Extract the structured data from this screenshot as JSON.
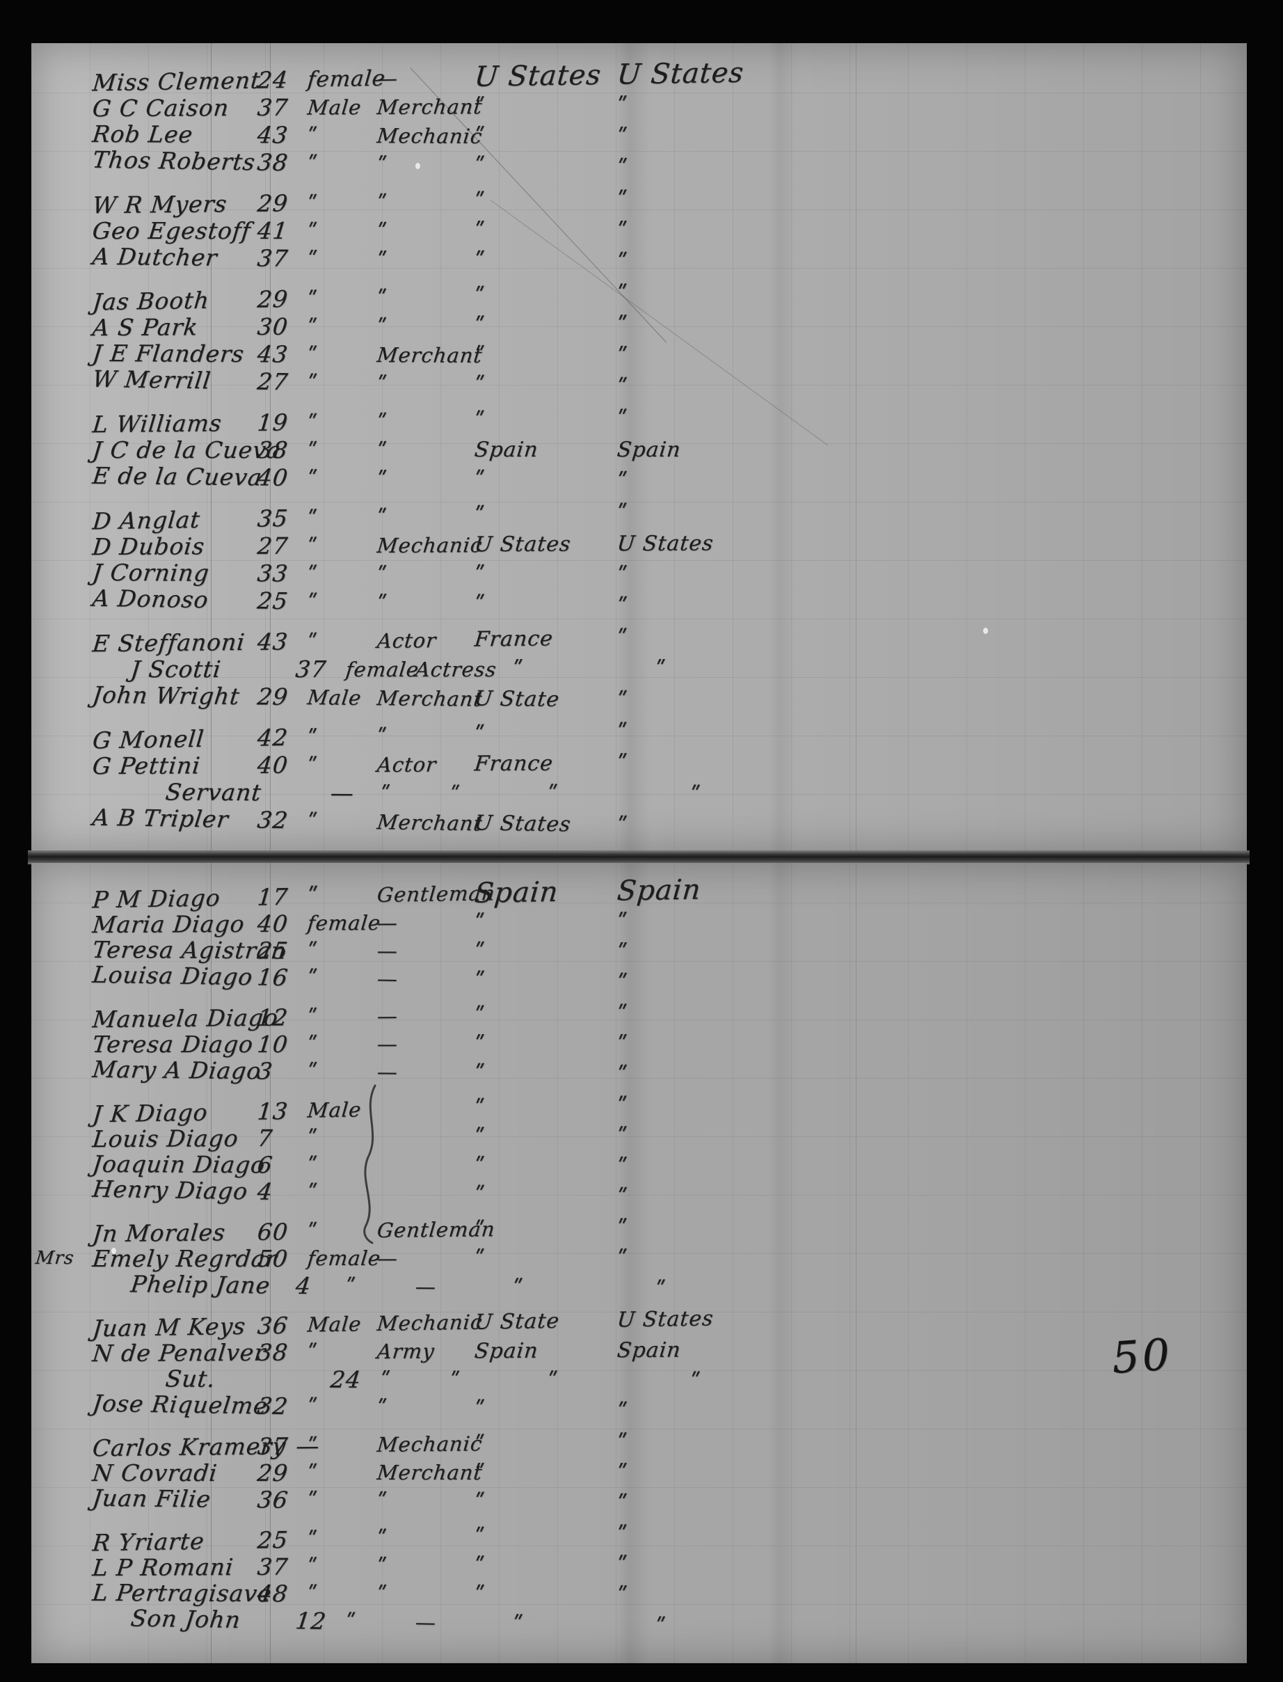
{
  "annotations": {
    "page_number": "50"
  },
  "marks": {
    "ditto": "ʺ",
    "dash": "—"
  },
  "pages": [
    {
      "rows": [
        {
          "name": "Miss Clement",
          "age": "24",
          "sex": "female",
          "occupation": "—",
          "origin": "U States",
          "destination": "U States",
          "indent": 0,
          "margin": ""
        },
        {
          "name": "G C Caison",
          "age": "37",
          "sex": "Male",
          "occupation": "Merchant",
          "origin": "ʺ",
          "destination": "ʺ",
          "indent": 0,
          "margin": ""
        },
        {
          "name": "Rob Lee",
          "age": "43",
          "sex": "ʺ",
          "occupation": "Mechanic",
          "origin": "ʺ",
          "destination": "ʺ",
          "indent": 0,
          "margin": ""
        },
        {
          "name": "Thos Roberts",
          "age": "38",
          "sex": "ʺ",
          "occupation": "ʺ",
          "origin": "ʺ",
          "destination": "ʺ",
          "indent": 0,
          "margin": ""
        },
        {
          "name": "W R Myers",
          "age": "29",
          "sex": "ʺ",
          "occupation": "ʺ",
          "origin": "ʺ",
          "destination": "ʺ",
          "indent": 0,
          "margin": ""
        },
        {
          "name": "Geo Egestoff",
          "age": "41",
          "sex": "ʺ",
          "occupation": "ʺ",
          "origin": "ʺ",
          "destination": "ʺ",
          "indent": 0,
          "margin": ""
        },
        {
          "name": "A Dutcher",
          "age": "37",
          "sex": "ʺ",
          "occupation": "ʺ",
          "origin": "ʺ",
          "destination": "ʺ",
          "indent": 0,
          "margin": ""
        },
        {
          "name": "Jas Booth",
          "age": "29",
          "sex": "ʺ",
          "occupation": "ʺ",
          "origin": "ʺ",
          "destination": "ʺ",
          "indent": 0,
          "margin": ""
        },
        {
          "name": "A S Park",
          "age": "30",
          "sex": "ʺ",
          "occupation": "ʺ",
          "origin": "ʺ",
          "destination": "ʺ",
          "indent": 0,
          "margin": ""
        },
        {
          "name": "J E Flanders",
          "age": "43",
          "sex": "ʺ",
          "occupation": "Merchant",
          "origin": "ʺ",
          "destination": "ʺ",
          "indent": 0,
          "margin": ""
        },
        {
          "name": "W Merrill",
          "age": "27",
          "sex": "ʺ",
          "occupation": "ʺ",
          "origin": "ʺ",
          "destination": "ʺ",
          "indent": 0,
          "margin": ""
        },
        {
          "name": "L Williams",
          "age": "19",
          "sex": "ʺ",
          "occupation": "ʺ",
          "origin": "ʺ",
          "destination": "ʺ",
          "indent": 0,
          "margin": ""
        },
        {
          "name": "J C de la Cueva",
          "age": "38",
          "sex": "ʺ",
          "occupation": "ʺ",
          "origin": "Spain",
          "destination": "Spain",
          "indent": 0,
          "margin": ""
        },
        {
          "name": "E de la Cueva",
          "age": "40",
          "sex": "ʺ",
          "occupation": "ʺ",
          "origin": "ʺ",
          "destination": "ʺ",
          "indent": 0,
          "margin": ""
        },
        {
          "name": "D Anglat",
          "age": "35",
          "sex": "ʺ",
          "occupation": "ʺ",
          "origin": "ʺ",
          "destination": "ʺ",
          "indent": 0,
          "margin": ""
        },
        {
          "name": "D Dubois",
          "age": "27",
          "sex": "ʺ",
          "occupation": "Mechanic",
          "origin": "U States",
          "destination": "U States",
          "indent": 0,
          "margin": ""
        },
        {
          "name": "J Corning",
          "age": "33",
          "sex": "ʺ",
          "occupation": "ʺ",
          "origin": "ʺ",
          "destination": "ʺ",
          "indent": 0,
          "margin": ""
        },
        {
          "name": "A Donoso",
          "age": "25",
          "sex": "ʺ",
          "occupation": "ʺ",
          "origin": "ʺ",
          "destination": "ʺ",
          "indent": 0,
          "margin": ""
        },
        {
          "name": "E Steffanoni",
          "age": "43",
          "sex": "ʺ",
          "occupation": "Actor",
          "origin": "France",
          "destination": "ʺ",
          "indent": 0,
          "margin": ""
        },
        {
          "name": "J Scotti",
          "age": "37",
          "sex": "female",
          "occupation": "Actress",
          "origin": "ʺ",
          "destination": "ʺ",
          "indent": 1,
          "margin": ""
        },
        {
          "name": "John Wright",
          "age": "29",
          "sex": "Male",
          "occupation": "Merchant",
          "origin": "U State",
          "destination": "ʺ",
          "indent": 0,
          "margin": ""
        },
        {
          "name": "G Monell",
          "age": "42",
          "sex": "ʺ",
          "occupation": "ʺ",
          "origin": "ʺ",
          "destination": "ʺ",
          "indent": 0,
          "margin": ""
        },
        {
          "name": "G Pettini",
          "age": "40",
          "sex": "ʺ",
          "occupation": "Actor",
          "origin": "France",
          "destination": "ʺ",
          "indent": 0,
          "margin": ""
        },
        {
          "name": "Servant",
          "age": "—",
          "sex": "ʺ",
          "occupation": "ʺ",
          "origin": "ʺ",
          "destination": "ʺ",
          "indent": 2,
          "margin": ""
        },
        {
          "name": "A B Tripler",
          "age": "32",
          "sex": "ʺ",
          "occupation": "Merchant",
          "origin": "U States",
          "destination": "ʺ",
          "indent": 0,
          "margin": ""
        }
      ]
    },
    {
      "rows": [
        {
          "name": "P M Diago",
          "age": "17",
          "sex": "ʺ",
          "occupation": "Gentleman",
          "origin": "Spain",
          "destination": "Spain",
          "indent": 0,
          "margin": ""
        },
        {
          "name": "Maria Diago",
          "age": "40",
          "sex": "female",
          "occupation": "—",
          "origin": "ʺ",
          "destination": "ʺ",
          "indent": 0,
          "margin": ""
        },
        {
          "name": "Teresa Agistran",
          "age": "25",
          "sex": "ʺ",
          "occupation": "—",
          "origin": "ʺ",
          "destination": "ʺ",
          "indent": 0,
          "margin": ""
        },
        {
          "name": "Louisa Diago",
          "age": "16",
          "sex": "ʺ",
          "occupation": "—",
          "origin": "ʺ",
          "destination": "ʺ",
          "indent": 0,
          "margin": ""
        },
        {
          "name": "Manuela Diago",
          "age": "12",
          "sex": "ʺ",
          "occupation": "—",
          "origin": "ʺ",
          "destination": "ʺ",
          "indent": 0,
          "margin": ""
        },
        {
          "name": "Teresa Diago",
          "age": "10",
          "sex": "ʺ",
          "occupation": "—",
          "origin": "ʺ",
          "destination": "ʺ",
          "indent": 0,
          "margin": ""
        },
        {
          "name": "Mary A Diago",
          "age": "3",
          "sex": "ʺ",
          "occupation": "—",
          "origin": "ʺ",
          "destination": "ʺ",
          "indent": 0,
          "margin": ""
        },
        {
          "name": "J K Diago",
          "age": "13",
          "sex": "Male",
          "occupation": "",
          "origin": "ʺ",
          "destination": "ʺ",
          "indent": 0,
          "margin": ""
        },
        {
          "name": "Louis Diago",
          "age": "7",
          "sex": "ʺ",
          "occupation": "",
          "origin": "ʺ",
          "destination": "ʺ",
          "indent": 0,
          "margin": ""
        },
        {
          "name": "Joaquin Diago",
          "age": "6",
          "sex": "ʺ",
          "occupation": "",
          "origin": "ʺ",
          "destination": "ʺ",
          "indent": 0,
          "margin": ""
        },
        {
          "name": "Henry Diago",
          "age": "4",
          "sex": "ʺ",
          "occupation": "",
          "origin": "ʺ",
          "destination": "ʺ",
          "indent": 0,
          "margin": ""
        },
        {
          "name": "Jn Morales",
          "age": "60",
          "sex": "ʺ",
          "occupation": "Gentleman",
          "origin": "ʺ",
          "destination": "ʺ",
          "indent": 0,
          "margin": ""
        },
        {
          "name": "Emely Regrdar",
          "age": "50",
          "sex": "female",
          "occupation": "—",
          "origin": "ʺ",
          "destination": "ʺ",
          "indent": 0,
          "margin": "Mrs"
        },
        {
          "name": "Phelip Jane",
          "age": "4",
          "sex": "ʺ",
          "occupation": "—",
          "origin": "ʺ",
          "destination": "ʺ",
          "indent": 1,
          "margin": ""
        },
        {
          "name": "Juan M Keys",
          "age": "36",
          "sex": "Male",
          "occupation": "Mechanic",
          "origin": "U State",
          "destination": "U States",
          "indent": 0,
          "margin": ""
        },
        {
          "name": "N de Penalver",
          "age": "38",
          "sex": "ʺ",
          "occupation": "Army",
          "origin": "Spain",
          "destination": "Spain",
          "indent": 0,
          "margin": ""
        },
        {
          "name": "Sut.",
          "age": "24",
          "sex": "ʺ",
          "occupation": "ʺ",
          "origin": "ʺ",
          "destination": "ʺ",
          "indent": 2,
          "margin": ""
        },
        {
          "name": "Jose Riquelme",
          "age": "32",
          "sex": "ʺ",
          "occupation": "ʺ",
          "origin": "ʺ",
          "destination": "ʺ",
          "indent": 0,
          "margin": ""
        },
        {
          "name": "Carlos Kramery",
          "age": "37 —",
          "sex": "ʺ",
          "occupation": "Mechanic",
          "origin": "ʺ",
          "destination": "ʺ",
          "indent": 0,
          "margin": ""
        },
        {
          "name": "N Covradi",
          "age": "29",
          "sex": "ʺ",
          "occupation": "Merchant",
          "origin": "ʺ",
          "destination": "ʺ",
          "indent": 0,
          "margin": ""
        },
        {
          "name": "Juan Filie",
          "age": "36",
          "sex": "ʺ",
          "occupation": "ʺ",
          "origin": "ʺ",
          "destination": "ʺ",
          "indent": 0,
          "margin": ""
        },
        {
          "name": "R Yriarte",
          "age": "25",
          "sex": "ʺ",
          "occupation": "ʺ",
          "origin": "ʺ",
          "destination": "ʺ",
          "indent": 0,
          "margin": ""
        },
        {
          "name": "L P Romani",
          "age": "37",
          "sex": "ʺ",
          "occupation": "ʺ",
          "origin": "ʺ",
          "destination": "ʺ",
          "indent": 0,
          "margin": ""
        },
        {
          "name": "L Pertragisave",
          "age": "48",
          "sex": "ʺ",
          "occupation": "ʺ",
          "origin": "ʺ",
          "destination": "ʺ",
          "indent": 0,
          "margin": ""
        },
        {
          "name": "Son John",
          "age": "12",
          "sex": "ʺ",
          "occupation": "—",
          "origin": "ʺ",
          "destination": "ʺ",
          "indent": 1,
          "margin": ""
        }
      ]
    }
  ]
}
